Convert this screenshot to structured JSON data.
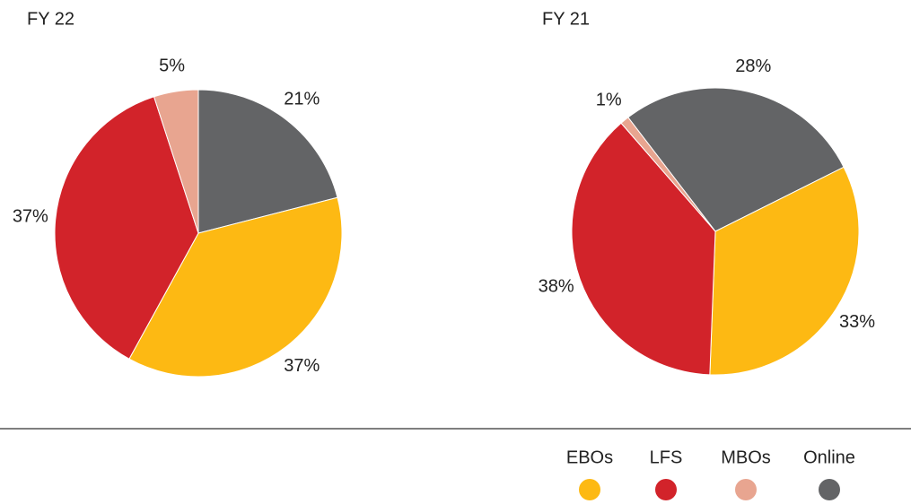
{
  "chart_data": [
    {
      "type": "pie",
      "title": "FY 22",
      "categories": [
        "Online",
        "EBOs",
        "LFS",
        "MBOs"
      ],
      "values": [
        21,
        37,
        37,
        5
      ],
      "value_labels": [
        "21%",
        "37%",
        "37%",
        "5%"
      ],
      "colors": [
        "#636466",
        "#fdb913",
        "#d2232a",
        "#e8a590"
      ]
    },
    {
      "type": "pie",
      "title": "FY 21",
      "categories": [
        "Online",
        "EBOs",
        "LFS",
        "MBOs"
      ],
      "values": [
        28,
        33,
        38,
        1
      ],
      "value_labels": [
        "28%",
        "33%",
        "38%",
        "1%"
      ],
      "colors": [
        "#636466",
        "#fdb913",
        "#d2232a",
        "#e8a590"
      ]
    }
  ],
  "legend": {
    "items": [
      "EBOs",
      "LFS",
      "MBOs",
      "Online"
    ],
    "colors": [
      "#fdb913",
      "#d2232a",
      "#e8a590",
      "#636466"
    ]
  }
}
